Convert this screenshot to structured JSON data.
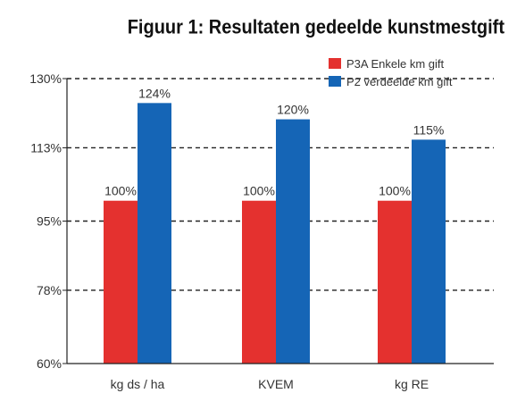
{
  "chart_data": {
    "type": "bar",
    "title": "Figuur 1: Resultaten gedeelde kunstmestgift",
    "categories": [
      "kg ds / ha",
      "KVEM",
      "kg RE"
    ],
    "series": [
      {
        "name": "P3A Enkele km gift",
        "color": "#e4312f",
        "values": [
          100,
          100,
          100
        ],
        "labels": [
          "100%",
          "100%",
          "100%"
        ]
      },
      {
        "name": "P2 verdeelde km gift",
        "color": "#1565b6",
        "values": [
          124,
          120,
          115
        ],
        "labels": [
          "124%",
          "120%",
          "115%"
        ]
      }
    ],
    "yticks": [
      60,
      78,
      95,
      113,
      130
    ],
    "ytick_labels": [
      "60%",
      "78%",
      "95%",
      "113%",
      "130%"
    ],
    "ylim": [
      60,
      130
    ],
    "grid": "dashed horizontal",
    "legend": "top-right"
  }
}
